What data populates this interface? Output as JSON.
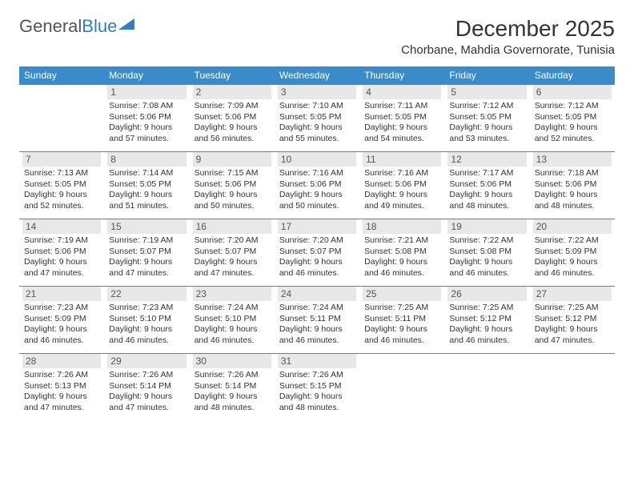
{
  "brand": {
    "text1": "General",
    "text2": "Blue"
  },
  "title": "December 2025",
  "subtitle": "Chorbane, Mahdia Governorate, Tunisia",
  "colors": {
    "header_bg": "#3a8bc9",
    "header_fg": "#ffffff",
    "daynum_bg": "#e8e8e8",
    "cell_border": "#3a8bc9",
    "brand_accent": "#2f7fc1"
  },
  "daynames": [
    "Sunday",
    "Monday",
    "Tuesday",
    "Wednesday",
    "Thursday",
    "Friday",
    "Saturday"
  ],
  "weeks": [
    [
      {
        "num": "",
        "rise": "",
        "set": "",
        "day": ""
      },
      {
        "num": "1",
        "rise": "Sunrise: 7:08 AM",
        "set": "Sunset: 5:06 PM",
        "day": "Daylight: 9 hours and 57 minutes."
      },
      {
        "num": "2",
        "rise": "Sunrise: 7:09 AM",
        "set": "Sunset: 5:06 PM",
        "day": "Daylight: 9 hours and 56 minutes."
      },
      {
        "num": "3",
        "rise": "Sunrise: 7:10 AM",
        "set": "Sunset: 5:05 PM",
        "day": "Daylight: 9 hours and 55 minutes."
      },
      {
        "num": "4",
        "rise": "Sunrise: 7:11 AM",
        "set": "Sunset: 5:05 PM",
        "day": "Daylight: 9 hours and 54 minutes."
      },
      {
        "num": "5",
        "rise": "Sunrise: 7:12 AM",
        "set": "Sunset: 5:05 PM",
        "day": "Daylight: 9 hours and 53 minutes."
      },
      {
        "num": "6",
        "rise": "Sunrise: 7:12 AM",
        "set": "Sunset: 5:05 PM",
        "day": "Daylight: 9 hours and 52 minutes."
      }
    ],
    [
      {
        "num": "7",
        "rise": "Sunrise: 7:13 AM",
        "set": "Sunset: 5:05 PM",
        "day": "Daylight: 9 hours and 52 minutes."
      },
      {
        "num": "8",
        "rise": "Sunrise: 7:14 AM",
        "set": "Sunset: 5:05 PM",
        "day": "Daylight: 9 hours and 51 minutes."
      },
      {
        "num": "9",
        "rise": "Sunrise: 7:15 AM",
        "set": "Sunset: 5:06 PM",
        "day": "Daylight: 9 hours and 50 minutes."
      },
      {
        "num": "10",
        "rise": "Sunrise: 7:16 AM",
        "set": "Sunset: 5:06 PM",
        "day": "Daylight: 9 hours and 50 minutes."
      },
      {
        "num": "11",
        "rise": "Sunrise: 7:16 AM",
        "set": "Sunset: 5:06 PM",
        "day": "Daylight: 9 hours and 49 minutes."
      },
      {
        "num": "12",
        "rise": "Sunrise: 7:17 AM",
        "set": "Sunset: 5:06 PM",
        "day": "Daylight: 9 hours and 48 minutes."
      },
      {
        "num": "13",
        "rise": "Sunrise: 7:18 AM",
        "set": "Sunset: 5:06 PM",
        "day": "Daylight: 9 hours and 48 minutes."
      }
    ],
    [
      {
        "num": "14",
        "rise": "Sunrise: 7:19 AM",
        "set": "Sunset: 5:06 PM",
        "day": "Daylight: 9 hours and 47 minutes."
      },
      {
        "num": "15",
        "rise": "Sunrise: 7:19 AM",
        "set": "Sunset: 5:07 PM",
        "day": "Daylight: 9 hours and 47 minutes."
      },
      {
        "num": "16",
        "rise": "Sunrise: 7:20 AM",
        "set": "Sunset: 5:07 PM",
        "day": "Daylight: 9 hours and 47 minutes."
      },
      {
        "num": "17",
        "rise": "Sunrise: 7:20 AM",
        "set": "Sunset: 5:07 PM",
        "day": "Daylight: 9 hours and 46 minutes."
      },
      {
        "num": "18",
        "rise": "Sunrise: 7:21 AM",
        "set": "Sunset: 5:08 PM",
        "day": "Daylight: 9 hours and 46 minutes."
      },
      {
        "num": "19",
        "rise": "Sunrise: 7:22 AM",
        "set": "Sunset: 5:08 PM",
        "day": "Daylight: 9 hours and 46 minutes."
      },
      {
        "num": "20",
        "rise": "Sunrise: 7:22 AM",
        "set": "Sunset: 5:09 PM",
        "day": "Daylight: 9 hours and 46 minutes."
      }
    ],
    [
      {
        "num": "21",
        "rise": "Sunrise: 7:23 AM",
        "set": "Sunset: 5:09 PM",
        "day": "Daylight: 9 hours and 46 minutes."
      },
      {
        "num": "22",
        "rise": "Sunrise: 7:23 AM",
        "set": "Sunset: 5:10 PM",
        "day": "Daylight: 9 hours and 46 minutes."
      },
      {
        "num": "23",
        "rise": "Sunrise: 7:24 AM",
        "set": "Sunset: 5:10 PM",
        "day": "Daylight: 9 hours and 46 minutes."
      },
      {
        "num": "24",
        "rise": "Sunrise: 7:24 AM",
        "set": "Sunset: 5:11 PM",
        "day": "Daylight: 9 hours and 46 minutes."
      },
      {
        "num": "25",
        "rise": "Sunrise: 7:25 AM",
        "set": "Sunset: 5:11 PM",
        "day": "Daylight: 9 hours and 46 minutes."
      },
      {
        "num": "26",
        "rise": "Sunrise: 7:25 AM",
        "set": "Sunset: 5:12 PM",
        "day": "Daylight: 9 hours and 46 minutes."
      },
      {
        "num": "27",
        "rise": "Sunrise: 7:25 AM",
        "set": "Sunset: 5:12 PM",
        "day": "Daylight: 9 hours and 47 minutes."
      }
    ],
    [
      {
        "num": "28",
        "rise": "Sunrise: 7:26 AM",
        "set": "Sunset: 5:13 PM",
        "day": "Daylight: 9 hours and 47 minutes."
      },
      {
        "num": "29",
        "rise": "Sunrise: 7:26 AM",
        "set": "Sunset: 5:14 PM",
        "day": "Daylight: 9 hours and 47 minutes."
      },
      {
        "num": "30",
        "rise": "Sunrise: 7:26 AM",
        "set": "Sunset: 5:14 PM",
        "day": "Daylight: 9 hours and 48 minutes."
      },
      {
        "num": "31",
        "rise": "Sunrise: 7:26 AM",
        "set": "Sunset: 5:15 PM",
        "day": "Daylight: 9 hours and 48 minutes."
      },
      {
        "num": "",
        "rise": "",
        "set": "",
        "day": ""
      },
      {
        "num": "",
        "rise": "",
        "set": "",
        "day": ""
      },
      {
        "num": "",
        "rise": "",
        "set": "",
        "day": ""
      }
    ]
  ]
}
